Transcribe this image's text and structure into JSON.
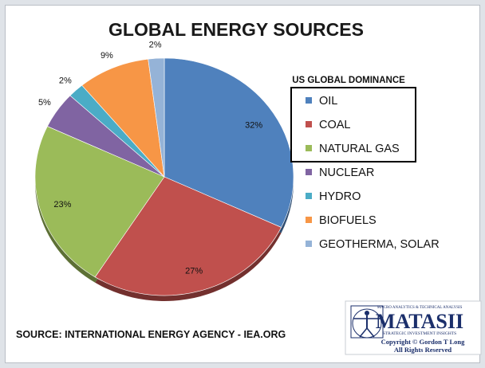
{
  "chart_data": {
    "type": "pie",
    "title": "GLOBAL ENERGY SOURCES",
    "legend_title": "US GLOBAL DOMINANCE",
    "legend_placement": "right",
    "highlighted_entries": [
      "OIL",
      "COAL",
      "NATURAL GAS"
    ],
    "slices": [
      {
        "label": "OIL",
        "value": 32,
        "value_label": "32%",
        "color": "#4f81bd"
      },
      {
        "label": "COAL",
        "value": 27,
        "value_label": "27%",
        "color": "#c0504d"
      },
      {
        "label": "NATURAL GAS",
        "value": 23,
        "value_label": "23%",
        "color": "#9bbb59"
      },
      {
        "label": "NUCLEAR",
        "value": 5,
        "value_label": "5%",
        "color": "#8064a2"
      },
      {
        "label": "HYDRO",
        "value": 2,
        "value_label": "2%",
        "color": "#4bacc6"
      },
      {
        "label": "BIOFUELS",
        "value": 9,
        "value_label": "9%",
        "color": "#f79646"
      },
      {
        "label": "GEOTHERMA, SOLAR",
        "value": 2,
        "value_label": "2%",
        "color": "#95b3d7"
      }
    ],
    "source_note": "SOURCE: INTERNATIONAL ENERGY AGENCY - IEA.ORG"
  },
  "logo": {
    "top_text": "MACRO ANALYTICS & TECHNICAL ANALYSIS",
    "brand": "MATASII",
    "tagline": "STRATEGIC INVESTMENT INSIGHTS",
    "copyright": "Copyright © Gordon T Long",
    "rights": "All Rights Reserved"
  }
}
